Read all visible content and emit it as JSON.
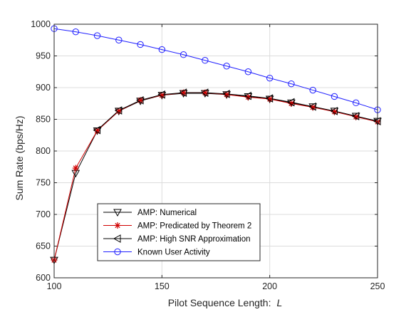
{
  "chart_data": {
    "type": "line",
    "xlabel": "Pilot Sequence Length:",
    "xlabel_var": "L",
    "ylabel": "Sum Rate (bps/Hz)",
    "xlim": [
      100,
      250
    ],
    "ylim": [
      600,
      1000
    ],
    "xticks": [
      100,
      150,
      200,
      250
    ],
    "yticks": [
      600,
      650,
      700,
      750,
      800,
      850,
      900,
      950,
      1000
    ],
    "grid": true,
    "legend_position": "bottom-left",
    "x": [
      100,
      110,
      120,
      130,
      140,
      150,
      160,
      170,
      180,
      190,
      200,
      210,
      220,
      230,
      240,
      250
    ],
    "series": [
      {
        "name": "AMP: Numerical",
        "color": "#000000",
        "marker": "triangle-down",
        "values": [
          628,
          765,
          832,
          863,
          879,
          888,
          891,
          891,
          889,
          886,
          882,
          876,
          870,
          863,
          855,
          847
        ]
      },
      {
        "name": "AMP: Predicated by Theorem 2",
        "color": "#d00000",
        "marker": "asterisk",
        "values": [
          628,
          773,
          832,
          863,
          880,
          888,
          892,
          892,
          889,
          885,
          882,
          875,
          869,
          862,
          854,
          846
        ]
      },
      {
        "name": "AMP: High SNR Approximation",
        "color": "#000000",
        "marker": "triangle-left",
        "values": [
          null,
          null,
          833,
          864,
          880,
          889,
          892,
          892,
          890,
          887,
          883,
          877,
          870,
          863,
          855,
          847
        ]
      },
      {
        "name": "Known User Activity",
        "color": "#1f1fff",
        "marker": "circle",
        "values": [
          993,
          988,
          982,
          975,
          968,
          960,
          952,
          943,
          934,
          925,
          915,
          906,
          896,
          886,
          876,
          865
        ]
      }
    ]
  }
}
